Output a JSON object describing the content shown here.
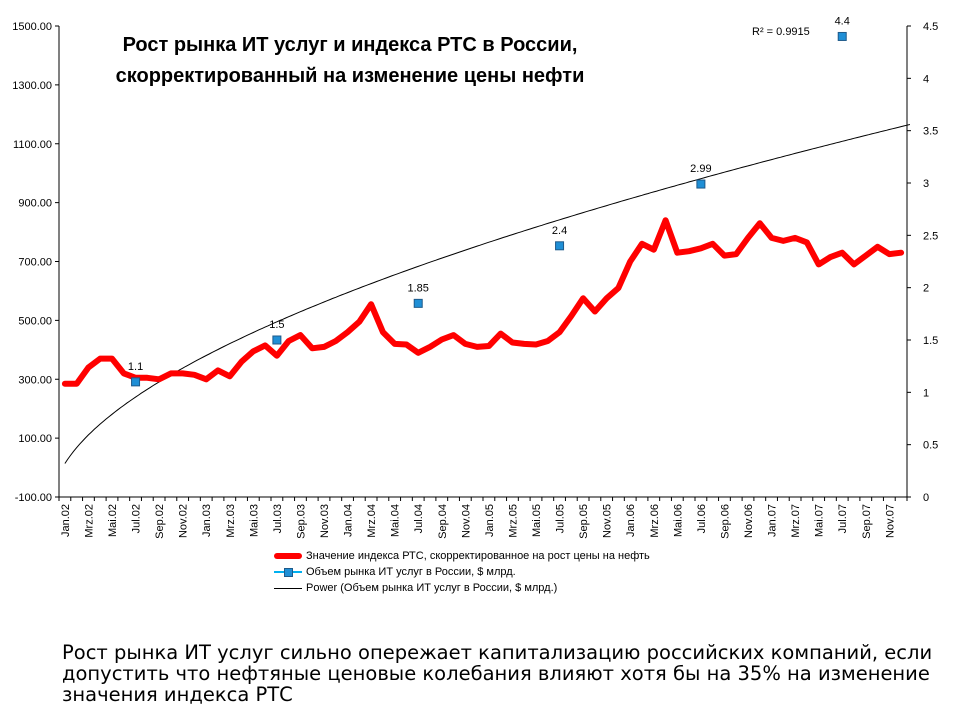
{
  "title_lines": [
    "Рост рынка ИТ услуг и индекса РТС в России,",
    "скорректированный на изменение цены нефти"
  ],
  "r2_label": "R² = 0.9915",
  "caption_lines": [
    "Рост рынка ИТ услуг сильно опережает капитализацию российских компаний, если",
    "допустить что нефтяные ценовые колебания влияют хотя бы на 35% на изменение",
    "значения индекса РТС"
  ],
  "chart_data": {
    "type": "line",
    "title": "Рост рынка ИТ услуг и индекса РТС в России, скорректированный на изменение цены нефти",
    "x_tick_labels": [
      "Jan.02",
      "Mrz.02",
      "Mai.02",
      "Jul.02",
      "Sep.02",
      "Nov.02",
      "Jan.03",
      "Mrz.03",
      "Mai.03",
      "Jul.03",
      "Sep.03",
      "Nov.03",
      "Jan.04",
      "Mrz.04",
      "Mai.04",
      "Jul.04",
      "Sep.04",
      "Nov.04",
      "Jan.05",
      "Mrz.05",
      "Mai.05",
      "Jul.05",
      "Sep.05",
      "Nov.05",
      "Jan.06",
      "Mrz.06",
      "Mai.06",
      "Jul.06",
      "Sep.06",
      "Nov.06",
      "Jan.07",
      "Mrz.07",
      "Mai.07",
      "Jul.07",
      "Sep.07",
      "Nov.07"
    ],
    "y_left": {
      "ylim": [
        -100,
        1500
      ],
      "ticks": [
        "-100.00",
        "100.00",
        "300.00",
        "500.00",
        "700.00",
        "900.00",
        "1100.00",
        "1300.00",
        "1500.00"
      ]
    },
    "y_right": {
      "ylim": [
        0,
        4.5
      ],
      "ticks": [
        "0",
        "0.5",
        "1",
        "1.5",
        "2",
        "2.5",
        "3",
        "3.5",
        "4",
        "4.5"
      ]
    },
    "series": [
      {
        "name": "Значение индекса РТС, скорректированное на рост цены на нефть",
        "axis": "left",
        "color": "#ff0000",
        "style": "thick-line",
        "values": [
          285,
          285,
          340,
          370,
          370,
          320,
          305,
          305,
          300,
          320,
          320,
          315,
          300,
          330,
          310,
          360,
          395,
          415,
          380,
          430,
          450,
          405,
          410,
          430,
          460,
          495,
          555,
          460,
          420,
          418,
          390,
          410,
          435,
          450,
          420,
          410,
          413,
          455,
          425,
          420,
          418,
          430,
          460,
          515,
          575,
          530,
          575,
          610,
          700,
          760,
          740,
          840,
          730,
          735,
          745,
          760,
          720,
          725,
          780,
          830,
          780,
          770,
          780,
          765,
          690,
          715,
          730,
          690,
          720,
          750,
          725,
          730
        ]
      },
      {
        "name": "Объем рынка ИТ услуг в России, $ млрд.",
        "axis": "right",
        "color": "#1f8fd6",
        "style": "markers",
        "points": [
          {
            "x_index": 6,
            "value": 1.1,
            "label": "1.1"
          },
          {
            "x_index": 18,
            "value": 1.5,
            "label": "1.5"
          },
          {
            "x_index": 30,
            "value": 1.85,
            "label": "1.85"
          },
          {
            "x_index": 42,
            "value": 2.4,
            "label": "2.4"
          },
          {
            "x_index": 54,
            "value": 2.99,
            "label": "2.99"
          },
          {
            "x_index": 66,
            "value": 4.4,
            "label": "4.4"
          }
        ]
      },
      {
        "name": "Power (Объем рынка ИТ услуг в России, $ млрд.)",
        "axis": "right",
        "color": "#000000",
        "style": "thin-line",
        "trendline": {
          "type": "power",
          "r2": 0.9915
        }
      }
    ],
    "legend_position": "bottom",
    "grid": false
  }
}
